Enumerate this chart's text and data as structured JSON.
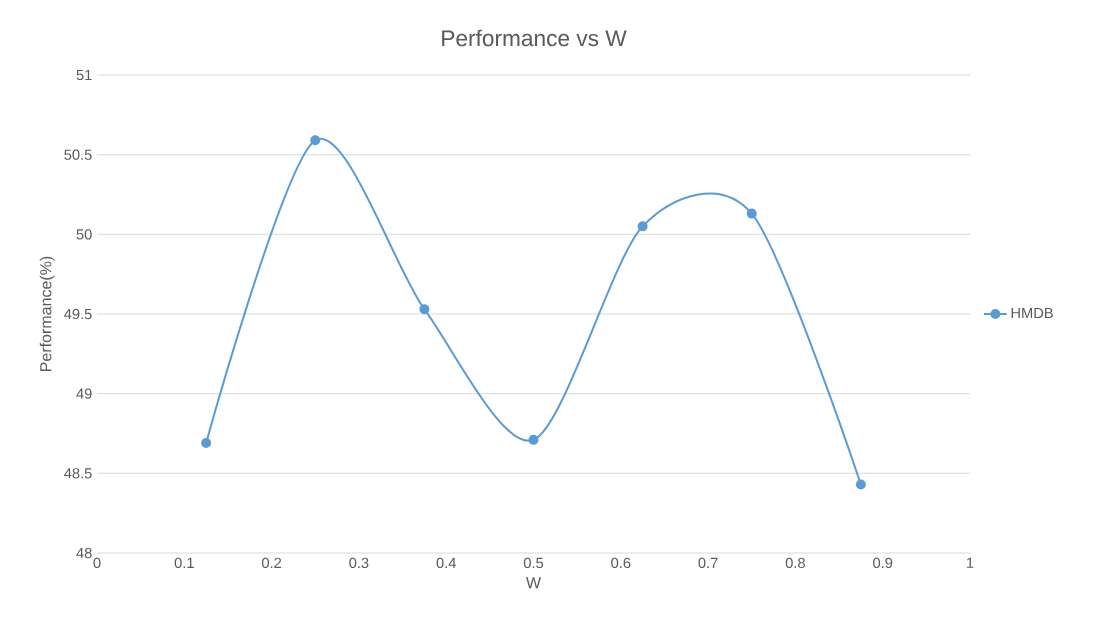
{
  "chart_data": {
    "type": "line",
    "title": "Performance vs W",
    "xlabel": "W",
    "ylabel": "Performance(%)",
    "x": [
      0.125,
      0.25,
      0.375,
      0.5,
      0.625,
      0.75,
      0.875
    ],
    "series": [
      {
        "name": "HMDB",
        "color": "#5b9bd5",
        "values": [
          48.69,
          50.59,
          49.53,
          48.71,
          50.05,
          50.13,
          48.43
        ]
      }
    ],
    "xlim": [
      0,
      1
    ],
    "ylim": [
      48,
      51
    ],
    "xticks": [
      0,
      0.1,
      0.2,
      0.3,
      0.4,
      0.5,
      0.6,
      0.7,
      0.8,
      0.9,
      1
    ],
    "yticks": [
      48,
      48.5,
      49,
      49.5,
      50,
      50.5,
      51
    ],
    "grid": "y",
    "legend": "right",
    "marker": "circle",
    "line_style": "solid"
  }
}
